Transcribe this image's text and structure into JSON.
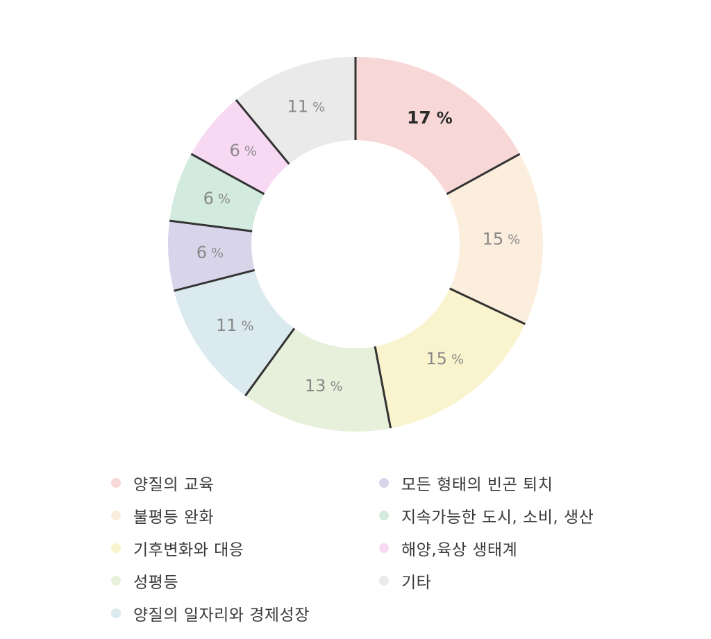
{
  "chart_data": {
    "type": "donut",
    "unit": "%",
    "slices": [
      {
        "label": "양질의 교육",
        "value": 17,
        "color": "#f8d7d7",
        "highlight": true
      },
      {
        "label": "불평등 완화",
        "value": 15,
        "color": "#fbeedd"
      },
      {
        "label": "기후변화와 대응",
        "value": 15,
        "color": "#f9f4cd"
      },
      {
        "label": "성평등",
        "value": 13,
        "color": "#e7f0da"
      },
      {
        "label": "양질의 일자리와 경제성장",
        "value": 11,
        "color": "#dbeaee"
      },
      {
        "label": "모든 형태의 빈곤 퇴치",
        "value": 6,
        "color": "#d8d5eb"
      },
      {
        "label": "지속가능한 도시, 소비, 생산",
        "value": 6,
        "color": "#d3eadf"
      },
      {
        "label": "해양,육상 생태계",
        "value": 6,
        "color": "#f7d9f4"
      },
      {
        "label": "기타",
        "value": 11,
        "color": "#eaeaea"
      }
    ],
    "legend_placement": "bottom",
    "legend_columns": [
      [
        "양질의 교육",
        "불평등 완화",
        "기후변화와 대응",
        "성평등",
        "양질의 일자리와 경제성장"
      ],
      [
        "모든 형태의 빈곤 퇴치",
        "지속가능한 도시, 소비, 생산",
        "해양,육상 생태계",
        "기타"
      ]
    ]
  }
}
